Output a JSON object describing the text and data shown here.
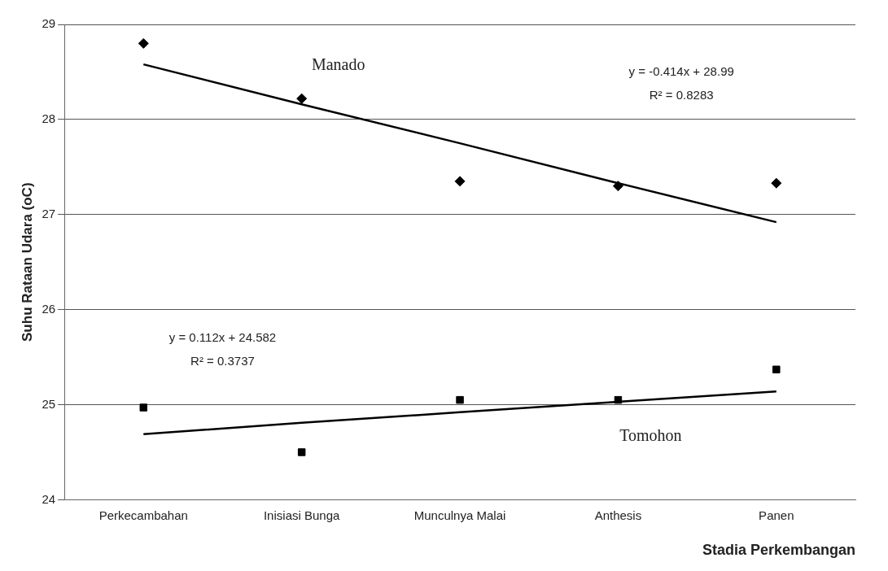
{
  "chart_data": {
    "type": "scatter",
    "xlabel": "Stadia Perkembangan",
    "ylabel": "Suhu Rataan Udara (oC)",
    "categories": [
      "Perkecambahan",
      "Inisiasi Bunga",
      "Munculnya Malai",
      "Anthesis",
      "Panen"
    ],
    "series": [
      {
        "name": "Manado",
        "marker": "diamond",
        "color": "#000000",
        "values": [
          28.8,
          28.22,
          27.35,
          27.3,
          27.33
        ]
      },
      {
        "type": "line",
        "marker": "none",
        "color": "#000000",
        "values": [
          28.58,
          28.16,
          27.75,
          27.33,
          26.92
        ]
      },
      {
        "name": "Tomohon",
        "marker": "square",
        "color": "#000000",
        "values": [
          24.97,
          24.5,
          25.05,
          25.05,
          25.37
        ]
      },
      {
        "type": "line",
        "marker": "none",
        "color": "#000000",
        "values": [
          24.69,
          24.81,
          24.92,
          25.03,
          25.14
        ]
      }
    ],
    "annotations": [
      "y = -0.414x + 28.99",
      "R² = 0.8283",
      "y = 0.112x + 24.582",
      "R² = 0.3737"
    ],
    "ylim": [
      24,
      29
    ],
    "yticks": [
      24,
      25,
      26,
      27,
      28,
      29
    ],
    "grid": "y",
    "legend": false
  }
}
